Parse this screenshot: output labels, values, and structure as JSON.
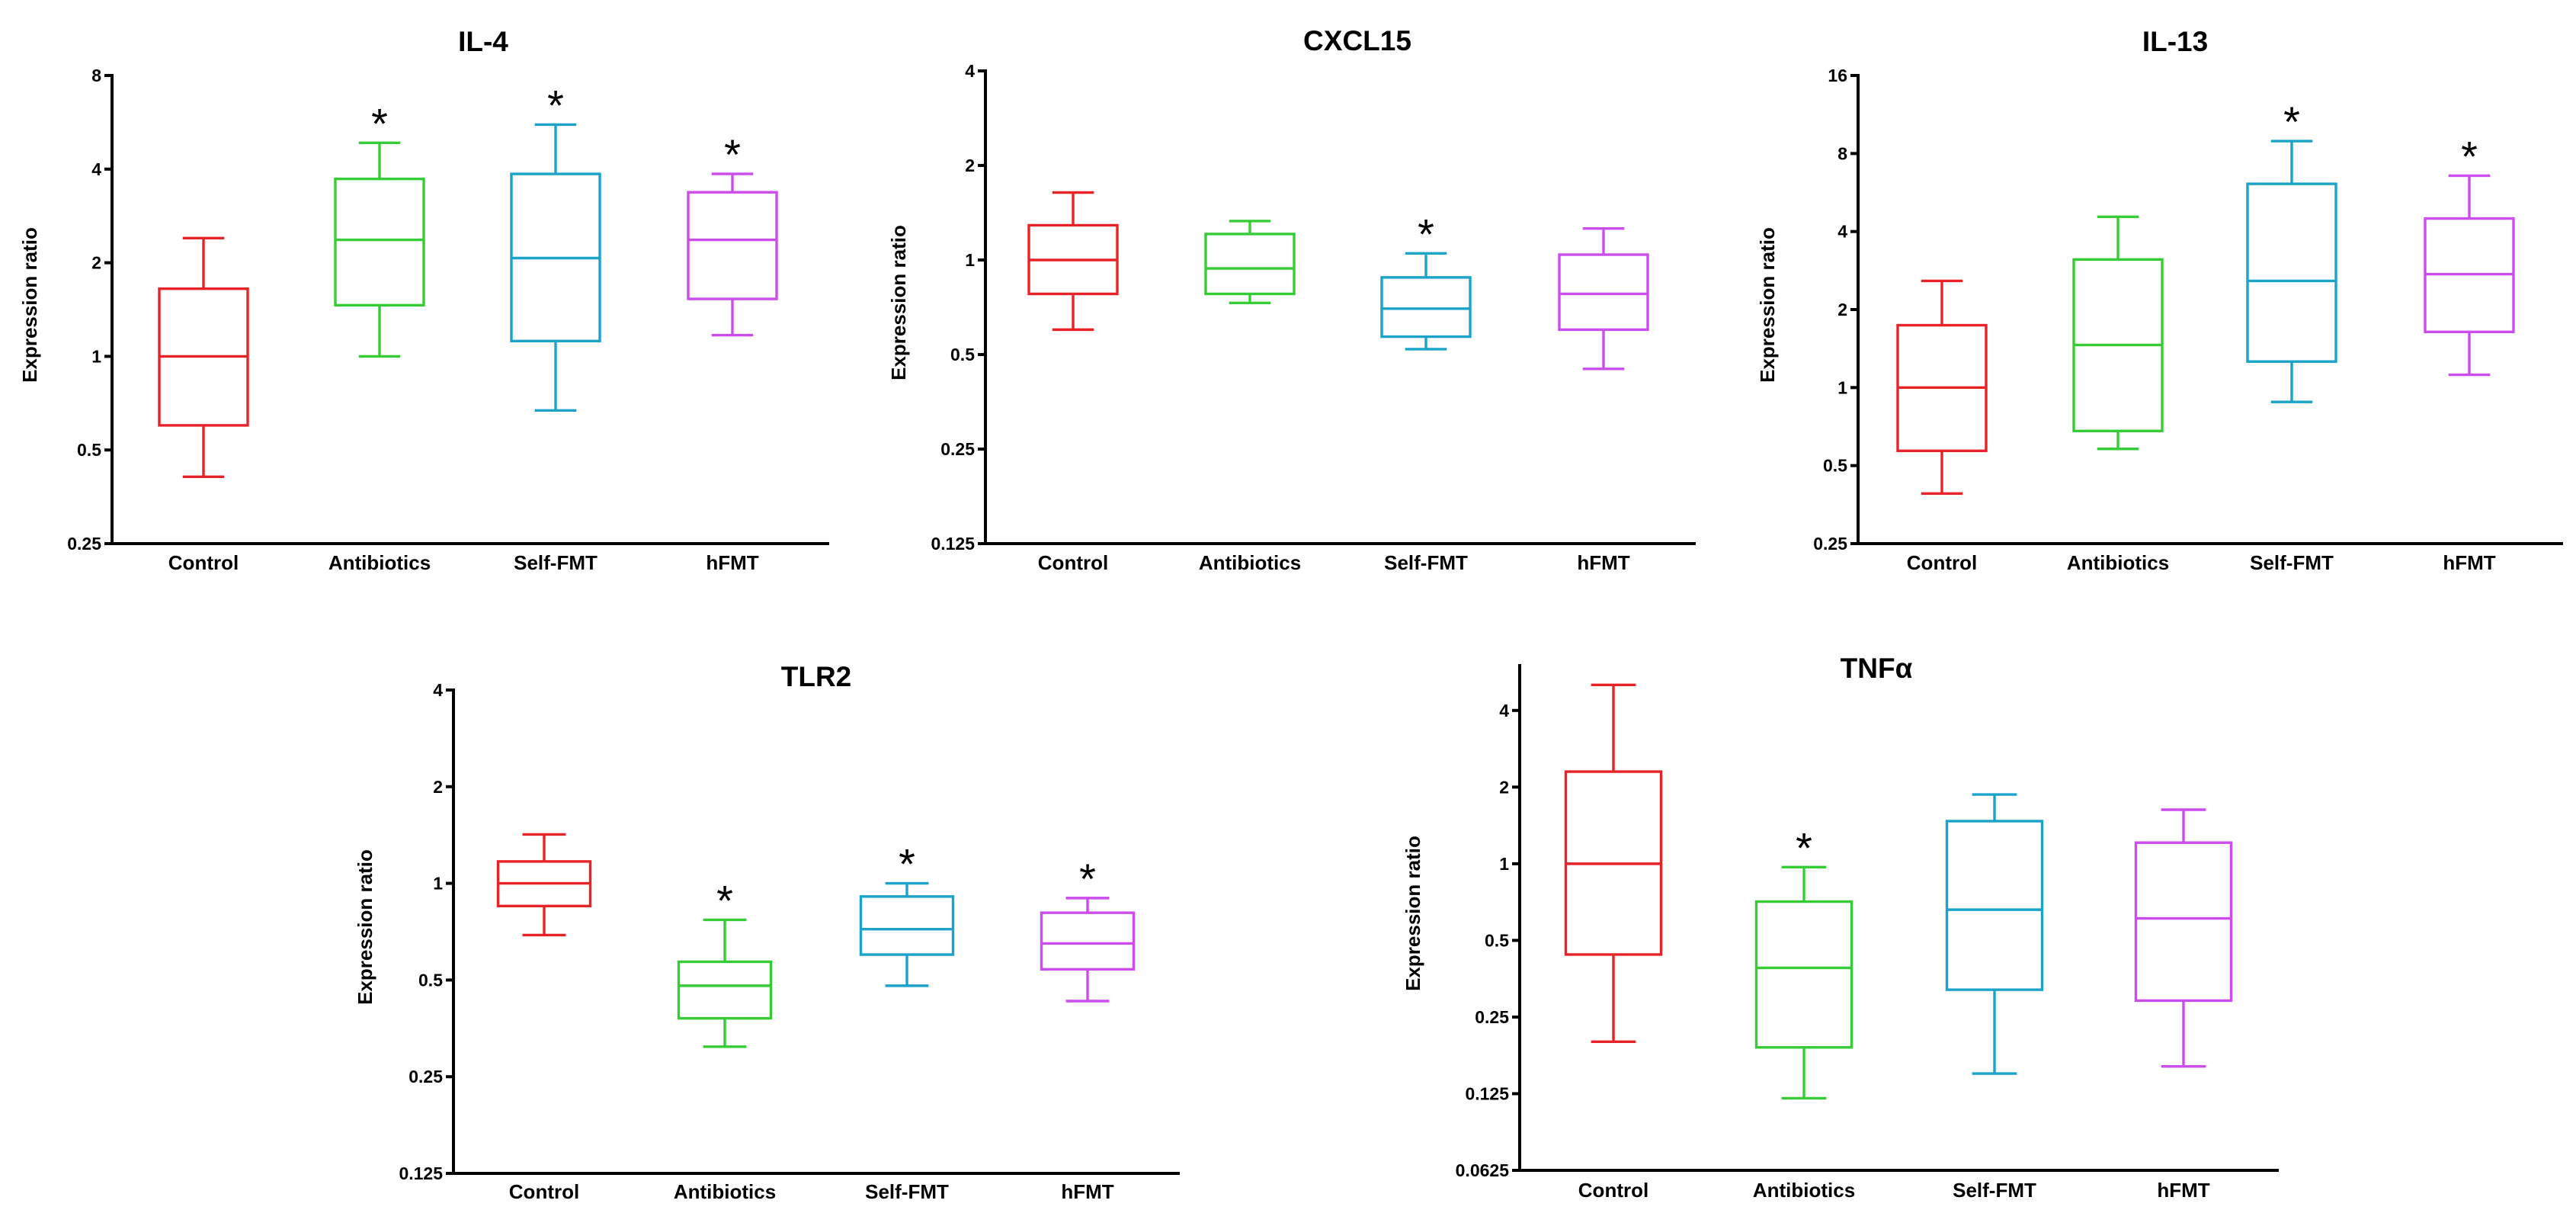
{
  "chart_data": [
    {
      "type": "box",
      "title": "IL-4",
      "ylabel": "Expression ratio",
      "yscale": "log2",
      "ylim": [
        0.25,
        8
      ],
      "yticks": [
        "8",
        "4",
        "2",
        "1",
        "0.5",
        "0.25"
      ],
      "grid": false,
      "categories": [
        "Control",
        "Antibiotics",
        "Self-FMT",
        "hFMT"
      ],
      "colors": [
        "#e82328",
        "#35cc35",
        "#1ba3c9",
        "#cc4cee"
      ],
      "boxes": [
        {
          "whisker_low": 0.41,
          "q1": 0.6,
          "median": 1.0,
          "q3": 1.65,
          "whisker_high": 2.4
        },
        {
          "whisker_low": 1.0,
          "q1": 1.46,
          "median": 2.37,
          "q3": 3.72,
          "whisker_high": 4.86,
          "marker": "*"
        },
        {
          "whisker_low": 0.67,
          "q1": 1.12,
          "median": 2.07,
          "q3": 3.86,
          "whisker_high": 5.56,
          "marker": "*"
        },
        {
          "whisker_low": 1.17,
          "q1": 1.53,
          "median": 2.37,
          "q3": 3.37,
          "whisker_high": 3.86,
          "marker": "*"
        }
      ]
    },
    {
      "type": "box",
      "title": "CXCL15",
      "ylabel": "Expression ratio",
      "yscale": "log2",
      "ylim": [
        0.125,
        4
      ],
      "yticks": [
        "4",
        "2",
        "1",
        "0.5",
        "0.25",
        "0.125"
      ],
      "grid": false,
      "categories": [
        "Control",
        "Antibiotics",
        "Self-FMT",
        "hFMT"
      ],
      "colors": [
        "#e82328",
        "#35cc35",
        "#1ba3c9",
        "#cc4cee"
      ],
      "boxes": [
        {
          "whisker_low": 0.6,
          "q1": 0.78,
          "median": 1.0,
          "q3": 1.29,
          "whisker_high": 1.64
        },
        {
          "whisker_low": 0.73,
          "q1": 0.78,
          "median": 0.94,
          "q3": 1.21,
          "whisker_high": 1.33
        },
        {
          "whisker_low": 0.52,
          "q1": 0.57,
          "median": 0.7,
          "q3": 0.88,
          "whisker_high": 1.05,
          "marker": "*"
        },
        {
          "whisker_low": 0.45,
          "q1": 0.6,
          "median": 0.78,
          "q3": 1.04,
          "whisker_high": 1.26
        }
      ]
    },
    {
      "type": "box",
      "title": "IL-13",
      "ylabel": "Expression ratio",
      "yscale": "log2",
      "ylim": [
        0.25,
        16
      ],
      "yticks": [
        "16",
        "8",
        "4",
        "2",
        "1",
        "0.5",
        "0.25"
      ],
      "grid": false,
      "categories": [
        "Control",
        "Antibiotics",
        "Self-FMT",
        "hFMT"
      ],
      "colors": [
        "#e82328",
        "#35cc35",
        "#1ba3c9",
        "#cc4cee"
      ],
      "boxes": [
        {
          "whisker_low": 0.39,
          "q1": 0.57,
          "median": 1.0,
          "q3": 1.74,
          "whisker_high": 2.58
        },
        {
          "whisker_low": 0.58,
          "q1": 0.68,
          "median": 1.46,
          "q3": 3.12,
          "whisker_high": 4.56
        },
        {
          "whisker_low": 0.88,
          "q1": 1.26,
          "median": 2.58,
          "q3": 6.11,
          "whisker_high": 8.93,
          "marker": "*"
        },
        {
          "whisker_low": 1.12,
          "q1": 1.64,
          "median": 2.74,
          "q3": 4.49,
          "whisker_high": 6.57,
          "marker": "*"
        }
      ]
    },
    {
      "type": "box",
      "title": "TLR2",
      "ylabel": "Expression ratio",
      "yscale": "log2",
      "ylim": [
        0.125,
        4
      ],
      "yticks": [
        "4",
        "2",
        "1",
        "0.5",
        "0.25",
        "0.125"
      ],
      "grid": false,
      "categories": [
        "Control",
        "Antibiotics",
        "Self-FMT",
        "hFMT"
      ],
      "colors": [
        "#e82328",
        "#35cc35",
        "#1ba3c9",
        "#cc4cee"
      ],
      "boxes": [
        {
          "whisker_low": 0.69,
          "q1": 0.85,
          "median": 1.0,
          "q3": 1.17,
          "whisker_high": 1.42
        },
        {
          "whisker_low": 0.31,
          "q1": 0.38,
          "median": 0.48,
          "q3": 0.57,
          "whisker_high": 0.77,
          "marker": "*"
        },
        {
          "whisker_low": 0.48,
          "q1": 0.6,
          "median": 0.72,
          "q3": 0.91,
          "whisker_high": 1.0,
          "marker": "*"
        },
        {
          "whisker_low": 0.43,
          "q1": 0.54,
          "median": 0.65,
          "q3": 0.81,
          "whisker_high": 0.9,
          "marker": "*"
        }
      ]
    },
    {
      "type": "box",
      "title": "TNFα",
      "ylabel": "Expression ratio",
      "yscale": "log2",
      "ylim": [
        0.0625,
        6
      ],
      "yticks": [
        "4",
        "2",
        "1",
        "0.5",
        "0.25",
        "0.125",
        "0.0625"
      ],
      "grid": false,
      "categories": [
        "Control",
        "Antibiotics",
        "Self-FMT",
        "hFMT"
      ],
      "colors": [
        "#e82328",
        "#35cc35",
        "#1ba3c9",
        "#cc4cee"
      ],
      "boxes": [
        {
          "whisker_low": 0.2,
          "q1": 0.44,
          "median": 1.0,
          "q3": 2.3,
          "whisker_high": 5.04
        },
        {
          "whisker_low": 0.12,
          "q1": 0.19,
          "median": 0.39,
          "q3": 0.71,
          "whisker_high": 0.97,
          "marker": "*"
        },
        {
          "whisker_low": 0.15,
          "q1": 0.32,
          "median": 0.66,
          "q3": 1.47,
          "whisker_high": 1.87
        },
        {
          "whisker_low": 0.16,
          "q1": 0.29,
          "median": 0.61,
          "q3": 1.21,
          "whisker_high": 1.63
        }
      ]
    }
  ]
}
